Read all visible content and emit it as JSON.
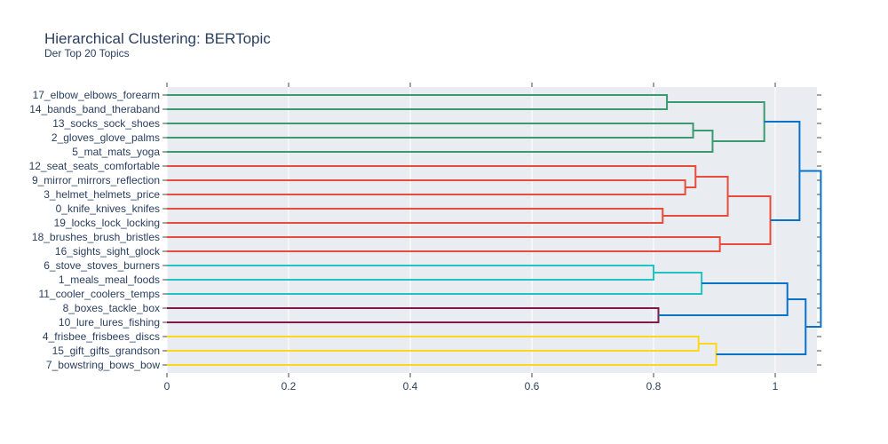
{
  "chart_data": {
    "type": "dendrogram",
    "title": "Hierarchical Clustering: BERTopic",
    "subtitle": "Der Top 20 Topics",
    "orientation": "horizontal",
    "xlim": [
      0,
      1.075
    ],
    "xticks": [
      0,
      0.2,
      0.4,
      0.6,
      0.8,
      1
    ],
    "xtick_labels": [
      "0",
      "0.2",
      "0.4",
      "0.6",
      "0.8",
      "1"
    ],
    "leaves": [
      "17_elbow_elbows_forearm",
      "14_bands_band_theraband",
      "13_socks_sock_shoes",
      "2_gloves_glove_palms",
      "5_mat_mats_yoga",
      "12_seat_seats_comfortable",
      "9_mirror_mirrors_reflection",
      "3_helmet_helmets_price",
      "0_knife_knives_knifes",
      "19_locks_lock_locking",
      "18_brushes_brush_bristles",
      "16_sights_sight_glock",
      "6_stove_stoves_burners",
      "1_meals_meal_foods",
      "11_cooler_coolers_temps",
      "8_boxes_tackle_box",
      "10_lure_lures_fishing",
      "4_frisbee_frisbees_discs",
      "15_gift_gifts_grandson",
      "7_bowstring_bows_bow"
    ],
    "colors": {
      "green": "#3d9970",
      "red": "#e74c3c",
      "cyan": "#22c3c3",
      "maroon": "#7b1c4b",
      "yellow": "#ffd71a",
      "blue": "#0a72c8",
      "plot_bg": "#e9edf1",
      "text": "#2a3f5f"
    },
    "merges": [
      {
        "a": 0,
        "b": 1,
        "height": 0.822,
        "color": "green"
      },
      {
        "a": 2,
        "b": 3,
        "height": 0.865,
        "color": "green"
      },
      {
        "a": 21,
        "b": 4,
        "height": 0.897,
        "color": "green"
      },
      {
        "a": 20,
        "b": 22,
        "height": 0.982,
        "color": "green"
      },
      {
        "a": 6,
        "b": 7,
        "height": 0.852,
        "color": "red"
      },
      {
        "a": 5,
        "b": 24,
        "height": 0.869,
        "color": "red"
      },
      {
        "a": 8,
        "b": 9,
        "height": 0.815,
        "color": "red"
      },
      {
        "a": 25,
        "b": 26,
        "height": 0.922,
        "color": "red"
      },
      {
        "a": 10,
        "b": 11,
        "height": 0.909,
        "color": "red"
      },
      {
        "a": 27,
        "b": 28,
        "height": 0.992,
        "color": "red"
      },
      {
        "a": 23,
        "b": 29,
        "height": 1.04,
        "color": "blue"
      },
      {
        "a": 12,
        "b": 13,
        "height": 0.8,
        "color": "cyan"
      },
      {
        "a": 31,
        "b": 14,
        "height": 0.879,
        "color": "cyan"
      },
      {
        "a": 15,
        "b": 16,
        "height": 0.808,
        "color": "maroon"
      },
      {
        "a": 32,
        "b": 33,
        "height": 1.02,
        "color": "blue"
      },
      {
        "a": 17,
        "b": 18,
        "height": 0.874,
        "color": "yellow"
      },
      {
        "a": 35,
        "b": 19,
        "height": 0.903,
        "color": "yellow"
      },
      {
        "a": 34,
        "b": 36,
        "height": 1.05,
        "color": "blue"
      },
      {
        "a": 30,
        "b": 37,
        "height": 1.075,
        "color": "blue"
      }
    ]
  }
}
